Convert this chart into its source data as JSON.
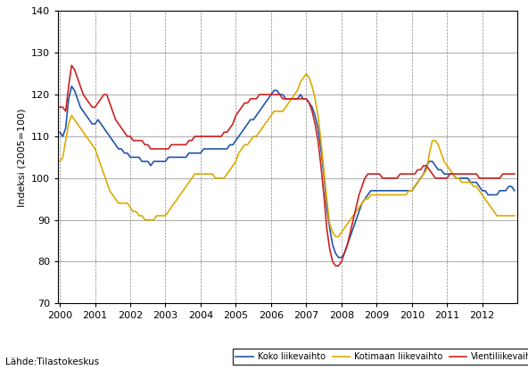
{
  "title": "",
  "ylabel": "Indeksi (2005=100)",
  "source_text": "Lähde:Tilastokeskus",
  "ylim": [
    70,
    140
  ],
  "yticks": [
    70,
    80,
    90,
    100,
    110,
    120,
    130,
    140
  ],
  "legend_labels": [
    "Koko liikevaihto",
    "Kotimaan liikevaihto",
    "Vientiliikevaihto"
  ],
  "colors": [
    "#2255aa",
    "#ddaa00",
    "#cc2222"
  ],
  "line_width": 1.2,
  "koko": [
    111,
    110,
    112,
    119,
    122,
    121,
    119,
    117,
    116,
    115,
    114,
    113,
    113,
    114,
    113,
    112,
    111,
    110,
    109,
    108,
    107,
    107,
    106,
    106,
    105,
    105,
    105,
    105,
    104,
    104,
    104,
    103,
    104,
    104,
    104,
    104,
    104,
    105,
    105,
    105,
    105,
    105,
    105,
    105,
    106,
    106,
    106,
    106,
    106,
    107,
    107,
    107,
    107,
    107,
    107,
    107,
    107,
    107,
    108,
    108,
    109,
    110,
    111,
    112,
    113,
    114,
    114,
    115,
    116,
    117,
    118,
    119,
    120,
    121,
    121,
    120,
    120,
    119,
    119,
    119,
    119,
    119,
    120,
    119,
    119,
    118,
    117,
    115,
    112,
    107,
    101,
    93,
    88,
    84,
    82,
    81,
    81,
    82,
    84,
    86,
    88,
    90,
    92,
    94,
    95,
    96,
    97,
    97,
    97,
    97,
    97,
    97,
    97,
    97,
    97,
    97,
    97,
    97,
    97,
    97,
    97,
    98,
    99,
    100,
    101,
    103,
    104,
    104,
    103,
    102,
    102,
    101,
    101,
    101,
    101,
    100,
    100,
    100,
    100,
    100,
    99,
    99,
    99,
    98,
    97,
    97,
    96,
    96,
    96,
    96,
    97,
    97,
    97,
    98,
    98,
    97
  ],
  "kotimaan": [
    104,
    105,
    109,
    113,
    115,
    114,
    113,
    112,
    111,
    110,
    109,
    108,
    107,
    105,
    103,
    101,
    99,
    97,
    96,
    95,
    94,
    94,
    94,
    94,
    93,
    92,
    92,
    91,
    91,
    90,
    90,
    90,
    90,
    91,
    91,
    91,
    91,
    92,
    93,
    94,
    95,
    96,
    97,
    98,
    99,
    100,
    101,
    101,
    101,
    101,
    101,
    101,
    101,
    100,
    100,
    100,
    100,
    101,
    102,
    103,
    104,
    106,
    107,
    108,
    108,
    109,
    110,
    110,
    111,
    112,
    113,
    114,
    115,
    116,
    116,
    116,
    116,
    117,
    118,
    119,
    120,
    121,
    123,
    124,
    125,
    124,
    122,
    119,
    115,
    109,
    102,
    95,
    89,
    87,
    86,
    86,
    87,
    88,
    89,
    90,
    91,
    92,
    93,
    94,
    95,
    95,
    96,
    96,
    96,
    96,
    96,
    96,
    96,
    96,
    96,
    96,
    96,
    96,
    96,
    97,
    97,
    98,
    99,
    100,
    101,
    102,
    106,
    109,
    109,
    108,
    106,
    104,
    103,
    102,
    101,
    100,
    100,
    99,
    99,
    99,
    99,
    98,
    98,
    97,
    96,
    95,
    94,
    93,
    92,
    91,
    91,
    91,
    91,
    91,
    91,
    91
  ],
  "vienti": [
    117,
    117,
    116,
    122,
    127,
    126,
    124,
    122,
    120,
    119,
    118,
    117,
    117,
    118,
    119,
    120,
    120,
    118,
    116,
    114,
    113,
    112,
    111,
    110,
    110,
    109,
    109,
    109,
    109,
    108,
    108,
    107,
    107,
    107,
    107,
    107,
    107,
    107,
    108,
    108,
    108,
    108,
    108,
    108,
    109,
    109,
    110,
    110,
    110,
    110,
    110,
    110,
    110,
    110,
    110,
    110,
    111,
    111,
    112,
    113,
    115,
    116,
    117,
    118,
    118,
    119,
    119,
    119,
    120,
    120,
    120,
    120,
    120,
    120,
    120,
    120,
    119,
    119,
    119,
    119,
    119,
    119,
    119,
    119,
    119,
    118,
    116,
    113,
    109,
    103,
    96,
    88,
    83,
    80,
    79,
    79,
    80,
    82,
    84,
    87,
    90,
    93,
    96,
    98,
    100,
    101,
    101,
    101,
    101,
    101,
    100,
    100,
    100,
    100,
    100,
    100,
    101,
    101,
    101,
    101,
    101,
    101,
    102,
    102,
    103,
    103,
    102,
    101,
    100,
    100,
    100,
    100,
    100,
    101,
    101,
    101,
    101,
    101,
    101,
    101,
    101,
    101,
    101,
    100,
    100,
    100,
    100,
    100,
    100,
    100,
    100,
    101,
    101,
    101,
    101,
    101
  ]
}
